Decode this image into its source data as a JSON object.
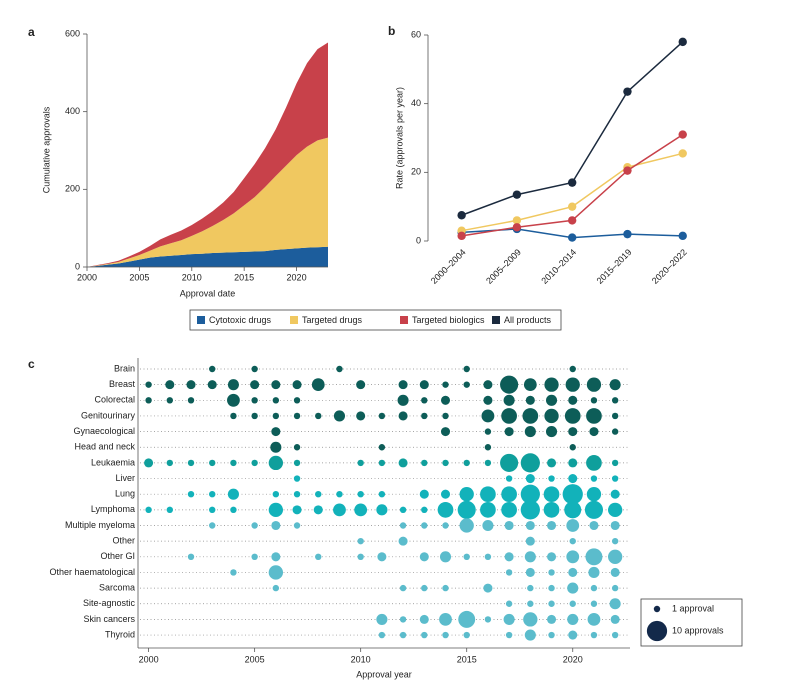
{
  "chart_data": [
    {
      "type": "area",
      "panel_label": "a",
      "stacked": true,
      "x": [
        2000,
        2001,
        2002,
        2003,
        2004,
        2005,
        2006,
        2007,
        2008,
        2009,
        2010,
        2011,
        2012,
        2013,
        2014,
        2015,
        2016,
        2017,
        2018,
        2019,
        2020,
        2021,
        2022,
        2023
      ],
      "xlim": [
        2000,
        2023
      ],
      "xticks": [
        2000,
        2005,
        2010,
        2015,
        2020
      ],
      "ylim": [
        0,
        600
      ],
      "yticks": [
        0,
        200,
        400,
        600
      ],
      "xlabel": "Approval date",
      "ylabel": "Cumulative approvals",
      "series": [
        {
          "name": "Cytotoxic drugs",
          "color": "#1c5d9c",
          "values": [
            0,
            3,
            6,
            9,
            14,
            19,
            24,
            27,
            29,
            31,
            33,
            34,
            36,
            37,
            38,
            39,
            40,
            41,
            44,
            46,
            48,
            50,
            51,
            52
          ]
        },
        {
          "name": "Targeted drugs",
          "color": "#f0c860",
          "values": [
            0,
            1,
            2,
            4,
            8,
            12,
            18,
            26,
            32,
            38,
            47,
            58,
            70,
            84,
            100,
            120,
            140,
            165,
            190,
            215,
            240,
            260,
            275,
            281
          ]
        },
        {
          "name": "Targeted biologics",
          "color": "#c8414a",
          "values": [
            0,
            1,
            2,
            3,
            5,
            8,
            12,
            18,
            22,
            25,
            28,
            33,
            38,
            45,
            55,
            70,
            85,
            100,
            120,
            150,
            185,
            215,
            235,
            245
          ]
        }
      ]
    },
    {
      "type": "line",
      "panel_label": "b",
      "categories": [
        "2000–2004",
        "2005–2009",
        "2010–2014",
        "2015–2019",
        "2020–2022"
      ],
      "ylim": [
        0,
        60
      ],
      "yticks": [
        0,
        20,
        40,
        60
      ],
      "ylabel": "Rate (approvals per year)",
      "series": [
        {
          "name": "Cytotoxic drugs",
          "color": "#1c5d9c",
          "values": [
            2.5,
            3.5,
            1,
            2,
            1.5
          ]
        },
        {
          "name": "Targeted drugs",
          "color": "#f0c860",
          "values": [
            3,
            6,
            10,
            21.5,
            25.5
          ]
        },
        {
          "name": "Targeted biologics",
          "color": "#c8414a",
          "values": [
            1.5,
            4,
            6,
            20.5,
            31
          ]
        },
        {
          "name": "All products",
          "color": "#1b2a3e",
          "values": [
            7.5,
            13.5,
            17,
            43.5,
            58
          ]
        }
      ]
    },
    {
      "type": "bubble",
      "panel_label": "c",
      "x": [
        2000,
        2001,
        2002,
        2003,
        2004,
        2005,
        2006,
        2007,
        2008,
        2009,
        2010,
        2011,
        2012,
        2013,
        2014,
        2015,
        2016,
        2017,
        2018,
        2019,
        2020,
        2021,
        2022
      ],
      "xlim": [
        1999.5,
        2022.7
      ],
      "xticks": [
        2000,
        2005,
        2010,
        2015,
        2020
      ],
      "xlabel": "Approval year",
      "size_legend": [
        {
          "value": 1,
          "label": "1 approval"
        },
        {
          "value": 10,
          "label": "10 approvals"
        }
      ],
      "size_legend_color": "#13294a",
      "series": [
        {
          "name": "Brain",
          "color": "#0d5d58",
          "values": [
            null,
            null,
            null,
            1,
            null,
            1,
            null,
            null,
            null,
            1,
            null,
            null,
            null,
            null,
            null,
            1,
            null,
            null,
            null,
            null,
            1,
            null,
            null
          ]
        },
        {
          "name": "Breast",
          "color": "#0d5d58",
          "values": [
            1,
            2,
            2,
            2,
            3,
            2,
            2,
            2,
            4,
            null,
            2,
            null,
            2,
            2,
            1,
            1,
            2,
            8,
            4,
            5,
            5,
            5,
            3
          ]
        },
        {
          "name": "Colorectal",
          "color": "#0d5d58",
          "values": [
            1,
            1,
            1,
            null,
            4,
            1,
            1,
            1,
            null,
            null,
            null,
            null,
            3,
            1,
            2,
            null,
            2,
            3,
            2,
            3,
            2,
            1,
            1
          ]
        },
        {
          "name": "Genitourinary",
          "color": "#0d5d58",
          "values": [
            null,
            null,
            null,
            null,
            1,
            1,
            1,
            1,
            1,
            3,
            2,
            1,
            2,
            1,
            1,
            null,
            4,
            6,
            6,
            5,
            6,
            6,
            1
          ]
        },
        {
          "name": "Gynaecological",
          "color": "#0d5d58",
          "values": [
            null,
            null,
            null,
            null,
            null,
            null,
            2,
            null,
            null,
            null,
            null,
            null,
            null,
            null,
            2,
            null,
            1,
            2,
            3,
            3,
            2,
            2,
            1
          ]
        },
        {
          "name": "Head and neck",
          "color": "#0d5d58",
          "values": [
            null,
            null,
            null,
            null,
            null,
            null,
            3,
            1,
            null,
            null,
            null,
            1,
            null,
            null,
            null,
            null,
            1,
            null,
            null,
            null,
            1,
            null,
            null
          ]
        },
        {
          "name": "Leukaemia",
          "color": "#0f9f9c",
          "values": [
            2,
            1,
            1,
            1,
            1,
            1,
            5,
            1,
            null,
            null,
            1,
            1,
            2,
            1,
            1,
            1,
            1,
            8,
            9,
            2,
            2,
            6,
            1
          ]
        },
        {
          "name": "Liver",
          "color": "#12b2ba",
          "values": [
            null,
            null,
            null,
            null,
            null,
            null,
            null,
            1,
            null,
            null,
            null,
            null,
            null,
            null,
            null,
            null,
            null,
            1,
            2,
            1,
            2,
            1,
            1
          ]
        },
        {
          "name": "Lung",
          "color": "#12b2ba",
          "values": [
            null,
            null,
            1,
            1,
            3,
            null,
            1,
            1,
            1,
            1,
            1,
            1,
            null,
            2,
            2,
            5,
            6,
            6,
            9,
            6,
            10,
            5,
            2
          ]
        },
        {
          "name": "Lymphoma",
          "color": "#12b2ba",
          "values": [
            1,
            1,
            null,
            1,
            1,
            null,
            5,
            2,
            2,
            4,
            4,
            3,
            1,
            1,
            6,
            8,
            6,
            6,
            9,
            6,
            7,
            8,
            5
          ]
        },
        {
          "name": "Multiple myeloma",
          "color": "#5bbccc",
          "values": [
            null,
            null,
            null,
            1,
            null,
            1,
            2,
            1,
            null,
            null,
            null,
            null,
            1,
            1,
            1,
            5,
            3,
            2,
            2,
            2,
            4,
            2,
            2
          ]
        },
        {
          "name": "Other",
          "color": "#5bbccc",
          "values": [
            null,
            null,
            null,
            null,
            null,
            null,
            null,
            null,
            null,
            null,
            1,
            null,
            2,
            null,
            null,
            null,
            null,
            null,
            2,
            null,
            1,
            null,
            1
          ]
        },
        {
          "name": "Other GI",
          "color": "#5bbccc",
          "values": [
            null,
            null,
            1,
            null,
            null,
            1,
            2,
            null,
            1,
            null,
            1,
            2,
            null,
            2,
            3,
            1,
            1,
            2,
            3,
            2,
            4,
            7,
            5
          ]
        },
        {
          "name": "Other haematological",
          "color": "#5bbccc",
          "values": [
            null,
            null,
            null,
            null,
            1,
            null,
            5,
            null,
            null,
            null,
            null,
            null,
            null,
            null,
            null,
            null,
            null,
            1,
            2,
            1,
            2,
            3,
            2
          ]
        },
        {
          "name": "Sarcoma",
          "color": "#5bbccc",
          "values": [
            null,
            null,
            null,
            null,
            null,
            null,
            1,
            null,
            null,
            null,
            null,
            null,
            1,
            1,
            1,
            null,
            2,
            null,
            1,
            1,
            3,
            1,
            1
          ]
        },
        {
          "name": "Site-agnostic",
          "color": "#5bbccc",
          "values": [
            null,
            null,
            null,
            null,
            null,
            null,
            null,
            null,
            null,
            null,
            null,
            null,
            null,
            null,
            null,
            null,
            null,
            1,
            1,
            1,
            1,
            1,
            3
          ]
        },
        {
          "name": "Skin cancers",
          "color": "#5bbccc",
          "values": [
            null,
            null,
            null,
            null,
            null,
            null,
            null,
            null,
            null,
            null,
            null,
            3,
            1,
            2,
            4,
            7,
            1,
            3,
            5,
            2,
            3,
            4,
            2
          ]
        },
        {
          "name": "Thyroid",
          "color": "#5bbccc",
          "values": [
            null,
            null,
            null,
            null,
            null,
            null,
            null,
            null,
            null,
            null,
            null,
            1,
            1,
            1,
            1,
            1,
            null,
            1,
            3,
            1,
            2,
            1,
            1
          ]
        }
      ]
    }
  ]
}
